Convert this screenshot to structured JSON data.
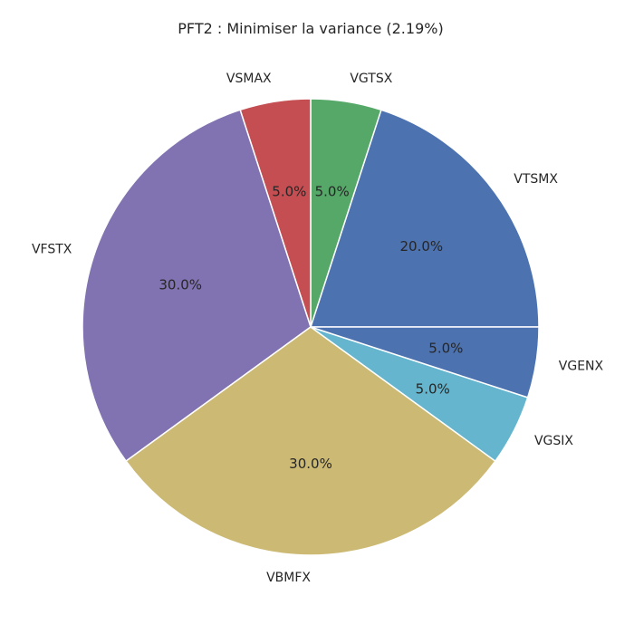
{
  "chart_data": {
    "type": "pie",
    "title": "PFT2 : Minimiser la variance (2.19%)",
    "categories": [
      "VTSMX",
      "VGTSX",
      "VSMAX",
      "VFSTX",
      "VBMFX",
      "VGSIX",
      "VGENX"
    ],
    "values": [
      20.0,
      5.0,
      5.0,
      30.0,
      30.0,
      5.0,
      5.0
    ],
    "value_labels": [
      "20.0%",
      "5.0%",
      "5.0%",
      "30.0%",
      "30.0%",
      "5.0%",
      "5.0%"
    ],
    "colors": [
      "#4c72b0",
      "#55a868",
      "#c44e52",
      "#8172b2",
      "#ccb974",
      "#64b5cd",
      "#4c72b0"
    ],
    "start_angle_deg": 0,
    "direction": "counterclockwise",
    "legend": "none"
  }
}
